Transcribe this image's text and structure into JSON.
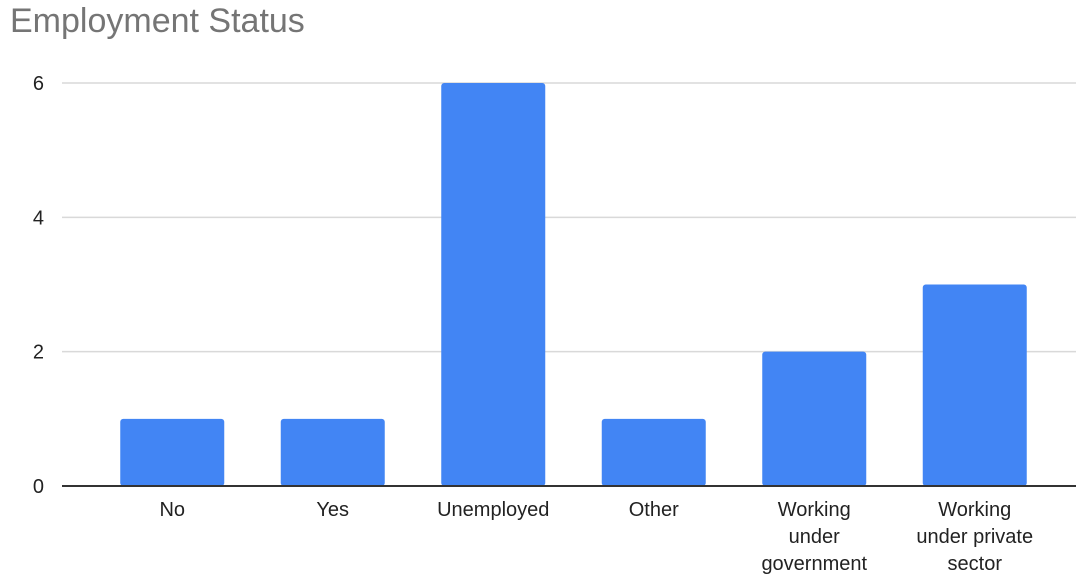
{
  "chart_data": {
    "type": "bar",
    "title": "Employment Status",
    "categories": [
      "No",
      "Yes",
      "Unemployed",
      "Other",
      "Working under government",
      "Working under private sector"
    ],
    "category_label_lines": [
      [
        "No"
      ],
      [
        "Yes"
      ],
      [
        "Unemployed"
      ],
      [
        "Other"
      ],
      [
        "Working",
        "under",
        "government"
      ],
      [
        "Working",
        "under private",
        "sector"
      ]
    ],
    "values": [
      1,
      1,
      6,
      1,
      2,
      3
    ],
    "ylim": [
      0,
      6
    ],
    "yticks": [
      0,
      2,
      4,
      6
    ],
    "xlabel": "",
    "ylabel": "",
    "grid": true,
    "bar_color": "#4285f4",
    "grid_color": "#d9d9d9",
    "axis_color": "#333333"
  }
}
